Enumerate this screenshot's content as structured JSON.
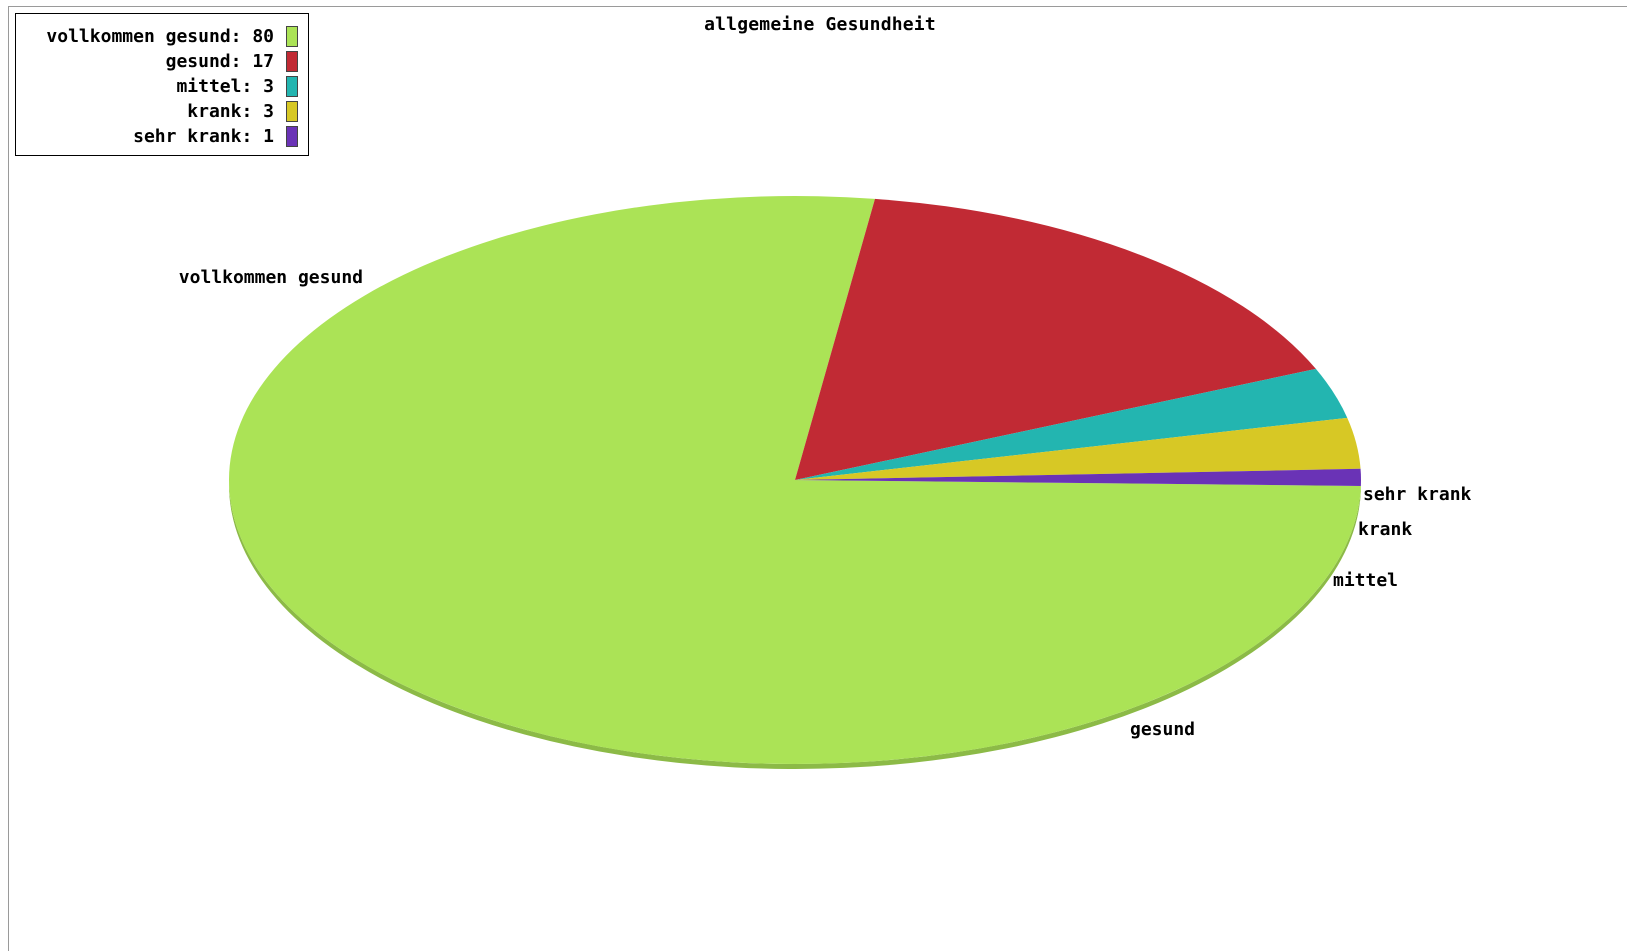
{
  "chart_data": {
    "type": "pie",
    "title": "allgemeine Gesundheit",
    "legend_position": "top-left",
    "slices": [
      {
        "label": "vollkommen gesund",
        "value": 80,
        "legend": "vollkommen gesund: 80",
        "color": "#abe356"
      },
      {
        "label": "gesund",
        "value": 17,
        "legend": "gesund: 17",
        "color": "#c12a34"
      },
      {
        "label": "mittel",
        "value": 3,
        "legend": "mittel: 3",
        "color": "#23b5b0"
      },
      {
        "label": "krank",
        "value": 3,
        "legend": "krank: 3",
        "color": "#d7c825"
      },
      {
        "label": "sehr krank",
        "value": 1,
        "legend": "sehr krank: 1",
        "color": "#6a33b6"
      }
    ]
  }
}
